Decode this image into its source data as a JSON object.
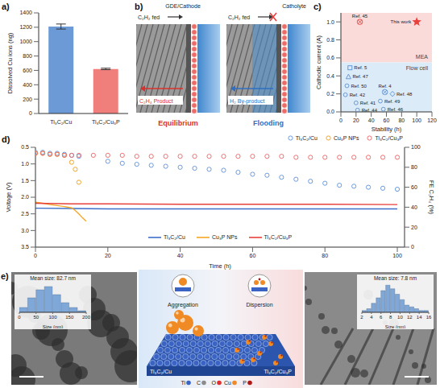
{
  "chart_data": [
    {
      "panel": "a)",
      "type": "bar",
      "categories": [
        "Ti₃C₂/Cu",
        "Ti₃C₂/Cu₃P"
      ],
      "values": [
        1210,
        620
      ],
      "errors": [
        35,
        10
      ],
      "colors": [
        "#6b9ad6",
        "#f07f7c"
      ],
      "y_label": "Dissolved Cu ions (ng)",
      "ylim": [
        0,
        1400
      ],
      "yticks": [
        0,
        200,
        400,
        600,
        800,
        1000,
        1200,
        1400
      ]
    },
    {
      "panel": "c)",
      "type": "scatter",
      "x_label": "Stability (h)",
      "y_label": "Cathodic current (A)",
      "xlim": [
        0,
        120
      ],
      "xticks": [
        0,
        20,
        40,
        60,
        80,
        100,
        120
      ],
      "ylim": [
        0,
        1.1
      ],
      "yticks": [
        {
          "value": 0,
          "label": "0.0"
        },
        0.2,
        0.4,
        0.6,
        0.8,
        {
          "value": 1,
          "label": "1.0"
        }
      ],
      "regions": [
        {
          "label": "MEA",
          "y": [
            0.55,
            1.1
          ],
          "color": "#fbdada"
        },
        {
          "label": "Flow cell",
          "y": [
            0,
            0.55
          ],
          "color": "#dcebf8"
        }
      ],
      "points": [
        {
          "label": "This work",
          "x": 100,
          "y": 1.0,
          "marker": "star",
          "color": "#e8413c"
        },
        {
          "label": "Ref. 45",
          "x": 25,
          "y": 1.0,
          "marker": "cross_circle",
          "color": "#e8413c"
        },
        {
          "label": "Ref. 5",
          "x": 12,
          "y": 0.49,
          "marker": "square",
          "color": "#5b8fd0"
        },
        {
          "label": "Ref. 47",
          "x": 10,
          "y": 0.39,
          "marker": "triangle",
          "color": "#5b8fd0"
        },
        {
          "label": "Ref. 50",
          "x": 8,
          "y": 0.29,
          "marker": "circle",
          "color": "#5b8fd0"
        },
        {
          "label": "Ref. 42",
          "x": 6,
          "y": 0.19,
          "marker": "circle",
          "color": "#5b8fd0"
        },
        {
          "label": "Ref. 41",
          "x": 20,
          "y": 0.1,
          "marker": "circle",
          "color": "#5b8fd0"
        },
        {
          "label": "Ref. 44",
          "x": 22,
          "y": 0.02,
          "marker": "circle",
          "color": "#5b8fd0"
        },
        {
          "label": "Ref. 49",
          "x": 52,
          "y": 0.12,
          "marker": "circle",
          "color": "#5b8fd0"
        },
        {
          "label": "Ref. 46",
          "x": 56,
          "y": 0.03,
          "marker": "circle",
          "color": "#5b8fd0"
        },
        {
          "label": "Ref. 4",
          "x": 58,
          "y": 0.22,
          "marker": "cross_circle",
          "color": "#5b8fd0"
        },
        {
          "label": "Ref. 48",
          "x": 68,
          "y": 0.2,
          "marker": "diamond",
          "color": "#5b8fd0"
        }
      ]
    },
    {
      "panel": "d)",
      "type": "line",
      "x_label": "Time (h)",
      "y_label": "Voltage (V)",
      "y2_label": "FE C₂H₄ (%)",
      "xlim": [
        0,
        102
      ],
      "xticks": [
        0,
        20,
        40,
        60,
        80,
        100
      ],
      "ylim": [
        3.5,
        0.5
      ],
      "yticks": [
        0.5,
        {
          "value": 1,
          "label": "1.0"
        },
        1.5,
        {
          "value": 2,
          "label": "2.0"
        },
        2.5,
        {
          "value": 3,
          "label": "3.0"
        },
        3.5
      ],
      "y2lim": [
        0,
        100
      ],
      "y2ticks": [
        0,
        20,
        40,
        60,
        80,
        100
      ],
      "legend": "lower center",
      "series": [
        {
          "name": "Ti₃C₂/Cu",
          "type": "line",
          "line_style": "solid",
          "color": "#3d6fc9",
          "x": [
            0,
            10,
            20,
            40,
            60,
            80,
            100
          ],
          "values": [
            2.33,
            2.34,
            2.35,
            2.35,
            2.35,
            2.35,
            2.35
          ]
        },
        {
          "name": "Cu₃P NPs",
          "type": "line",
          "line_style": "solid",
          "color": "#f5a623",
          "x": [
            0,
            2,
            4,
            6,
            8,
            10,
            11,
            12,
            13,
            14
          ],
          "values": [
            2.15,
            2.18,
            2.22,
            2.25,
            2.28,
            2.32,
            2.4,
            2.5,
            2.62,
            2.72
          ]
        },
        {
          "name": "Ti₃C₂/Cu₃P",
          "type": "line",
          "line_style": "solid",
          "color": "#e8413c",
          "x": [
            0,
            10,
            20,
            40,
            60,
            80,
            100
          ],
          "values": [
            2.18,
            2.2,
            2.2,
            2.21,
            2.21,
            2.21,
            2.22
          ]
        },
        {
          "name": "Ti₃C₂/Cu",
          "type": "scatter",
          "axis": "y2",
          "marker": "circle",
          "color": "#6a9be0",
          "x": [
            0,
            2,
            4,
            6,
            8,
            10,
            12,
            20,
            24,
            28,
            32,
            36,
            40,
            44,
            48,
            52,
            56,
            60,
            64,
            68,
            72,
            76,
            80,
            84,
            88,
            92,
            96,
            100
          ],
          "values": [
            95,
            95,
            94,
            94,
            93,
            92,
            91,
            86,
            84,
            83,
            82,
            81,
            80,
            79,
            78,
            77,
            75,
            73,
            72,
            70,
            68,
            66,
            64,
            62,
            61,
            60,
            59,
            58
          ]
        },
        {
          "name": "Cu₃P NPs",
          "type": "scatter",
          "axis": "y2",
          "marker": "circle",
          "color": "#f5a623",
          "x": [
            0,
            2,
            4,
            6,
            8,
            10,
            11,
            12
          ],
          "values": [
            94,
            94,
            93,
            93,
            92,
            85,
            78,
            65
          ]
        },
        {
          "name": "Ti₃C₂/Cu₃P",
          "type": "scatter",
          "axis": "y2",
          "marker": "circle",
          "color": "#f07070",
          "x": [
            0,
            2,
            4,
            6,
            8,
            10,
            12,
            16,
            20,
            24,
            28,
            32,
            36,
            40,
            44,
            48,
            52,
            56,
            60,
            64,
            68,
            72,
            76,
            80,
            84,
            88,
            92,
            96,
            100
          ],
          "values": [
            94,
            94,
            93,
            93,
            92,
            92,
            92,
            92,
            92,
            92,
            91,
            91,
            91,
            91,
            91,
            91,
            91,
            91,
            91,
            91,
            91,
            90,
            90,
            90,
            90,
            90,
            90,
            90,
            90
          ]
        }
      ]
    },
    {
      "type": "histogram",
      "title": "Mean size: 82.7 nm",
      "x_label": "Size (nm)",
      "bins": [
        0,
        25,
        50,
        75,
        100,
        125,
        150,
        175,
        200
      ],
      "counts": [
        3,
        9,
        14,
        16,
        11,
        6,
        3,
        1
      ],
      "xlim": [
        0,
        200
      ],
      "xticks": [
        0,
        50,
        100,
        150,
        200
      ],
      "ylim": [
        0,
        18
      ],
      "color": "#7fa8d8",
      "tick_labels": "x"
    },
    {
      "type": "histogram",
      "title": "Mean size: 7.8 nm",
      "x_label": "Size (nm)",
      "bins": [
        2,
        3,
        4,
        5,
        6,
        7,
        8,
        9,
        10,
        11,
        12,
        13,
        14,
        15,
        16
      ],
      "counts": [
        1,
        2,
        5,
        8,
        12,
        15,
        13,
        10,
        7,
        4,
        3,
        2,
        1,
        1
      ],
      "xlim": [
        2,
        16
      ],
      "xticks": [
        2,
        4,
        6,
        8,
        10,
        12,
        14,
        16
      ],
      "ylim": [
        0,
        16
      ],
      "color": "#7fa8d8",
      "tick_labels": "x"
    }
  ],
  "panel_b": {
    "panel": "b)",
    "left": {
      "top_label": "GDE/Cathode",
      "feed": "C₂H₂ fed",
      "outlet": "C₂H₄ Product",
      "state": "Equilibrium",
      "color": "#d8322e"
    },
    "right": {
      "top_label": "Catholyte",
      "feed": "C₂H₂ fed",
      "outlet": "H₂ By-product",
      "state": "Flooding",
      "color": "#2f6fc0"
    }
  },
  "panel_e": {
    "panel": "e)",
    "left_label": "Ti₃C₂/Cu",
    "right_label": "Ti₃C₂/Cu₃P",
    "left_process": "Aggregation",
    "right_process": "Dispersion",
    "elements": [
      {
        "symbol": "Ti",
        "color": "#3b63c4"
      },
      {
        "symbol": "C",
        "color": "#8c8c8c"
      },
      {
        "symbol": "O",
        "color": "#e03030"
      },
      {
        "symbol": "Cu",
        "color": "#f08a24"
      },
      {
        "symbol": "P",
        "color": "#b01818"
      }
    ]
  }
}
